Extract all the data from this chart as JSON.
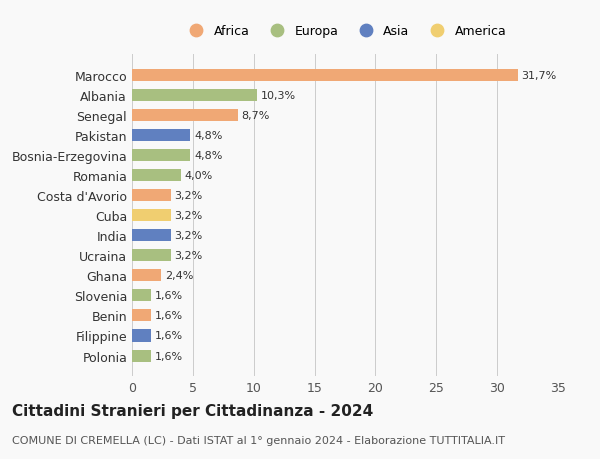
{
  "countries": [
    "Marocco",
    "Albania",
    "Senegal",
    "Pakistan",
    "Bosnia-Erzegovina",
    "Romania",
    "Costa d'Avorio",
    "Cuba",
    "India",
    "Ucraina",
    "Ghana",
    "Slovenia",
    "Benin",
    "Filippine",
    "Polonia"
  ],
  "values": [
    31.7,
    10.3,
    8.7,
    4.8,
    4.8,
    4.0,
    3.2,
    3.2,
    3.2,
    3.2,
    2.4,
    1.6,
    1.6,
    1.6,
    1.6
  ],
  "labels": [
    "31,7%",
    "10,3%",
    "8,7%",
    "4,8%",
    "4,8%",
    "4,0%",
    "3,2%",
    "3,2%",
    "3,2%",
    "3,2%",
    "2,4%",
    "1,6%",
    "1,6%",
    "1,6%",
    "1,6%"
  ],
  "continents": [
    "Africa",
    "Europa",
    "Africa",
    "Asia",
    "Europa",
    "Europa",
    "Africa",
    "America",
    "Asia",
    "Europa",
    "Africa",
    "Europa",
    "Africa",
    "Asia",
    "Europa"
  ],
  "continent_colors": {
    "Africa": "#F0A875",
    "Europa": "#A8BF80",
    "Asia": "#6080C0",
    "America": "#F0CE70"
  },
  "legend_order": [
    "Africa",
    "Europa",
    "Asia",
    "America"
  ],
  "title": "Cittadini Stranieri per Cittadinanza - 2024",
  "subtitle": "COMUNE DI CREMELLA (LC) - Dati ISTAT al 1° gennaio 2024 - Elaborazione TUTTITALIA.IT",
  "xlim": [
    0,
    35
  ],
  "xticks": [
    0,
    5,
    10,
    15,
    20,
    25,
    30,
    35
  ],
  "bg_color": "#f9f9f9",
  "bar_height": 0.6,
  "title_fontsize": 11,
  "subtitle_fontsize": 8,
  "axis_fontsize": 9,
  "label_fontsize": 8
}
